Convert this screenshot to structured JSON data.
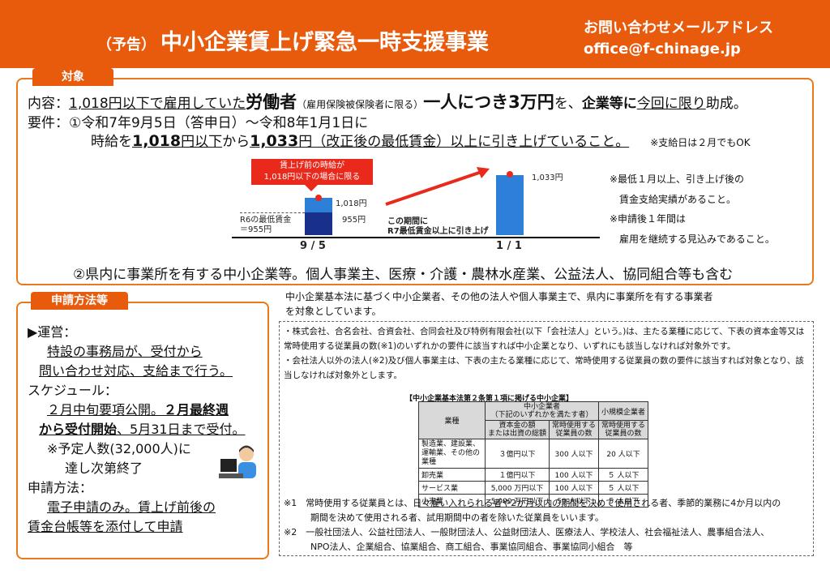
{
  "header": {
    "title_prefix": "（予告）",
    "title": "中小企業賃上げ緊急一時支援事業",
    "contact_label": "お問い合わせメールアドレス",
    "contact_email": "office@f-chinage.jp",
    "bg_color": "#e85a0c"
  },
  "target": {
    "tab": "対象",
    "content": {
      "p1": "内容：",
      "p2": "1,018円以下で雇用していた",
      "p3": "労働者",
      "p4": "（雇用保険被保険者に限る）",
      "p5": "一人につき3万円",
      "p6": "を、",
      "p7": "企業等に",
      "p8": "今回に限り",
      "p9": "助成。"
    },
    "req1": {
      "p1": "要件：①令和7年9月5日（答申日）～令和8年1月1日に"
    },
    "req2": {
      "p1": "時給を",
      "p2": "1,018",
      "p3": "円以下",
      "p4": "から",
      "p5": "1,033",
      "p6": "円（改正後の最低賃金）以上に引き上げていること。",
      "p7": "※支給日は２月でもOK"
    },
    "chart": {
      "callout": "賃上げ前の時給が\n1,018円以下の場合に限る",
      "left_top_label": "1,018円",
      "left_low_label": "955円",
      "r6_label": "R6の最低賃金\n＝955円",
      "arrow_label": "この期間に\nR7最低賃金以上に引き上げ",
      "right_label": "1,033円",
      "x_left": "9 / 5",
      "x_right": "1 / 1"
    },
    "notes": [
      "※最低１月以上、引き上げ後の",
      "　賃金支給実績があること。",
      "※申請後１年間は",
      "　雇用を継続する見込みであること。"
    ],
    "req3": "②県内に事業所を有する中小企業等。個人事業主、医療・介護・農林水産業、公益法人、協同組合等も含む"
  },
  "apply": {
    "tab": "申請方法等",
    "op_title": "▶運営：",
    "op1": "特設の事務局が、受付から",
    "op2": "問い合わせ対応、支給まで行う。",
    "sched_title": "スケジュール：",
    "s1": "２月中旬要項公開。",
    "s2": "２月最終週",
    "s3": "から受付開始",
    "s4": "、5月31日まで受付。",
    "s5": "※予定人数(32,000人)に",
    "s6": "達し次第終了",
    "method_title": "申請方法：",
    "m1": "電子申請のみ",
    "m2": "。賃上げ前後の",
    "m3": "賃金台帳等を添付して申請"
  },
  "definition": {
    "intro1": "中小企業基本法に基づく中小企業者、その他の法人や個人事業主で、県内に事業所を有する事業者",
    "intro2": "を対象としています。",
    "b1": "・株式会社、合名会社、合資会社、合同会社及び特例有限会社(以下「会社法人」という。)は、主たる業種に応じて、下表の資本金等又は常時使用する従業員の数(※1)のいずれかの要件に該当すれば中小企業となり、いずれにも該当しなければ対象外です。",
    "b2": "・会社法人以外の法人(※2)及び個人事業主は、下表の主たる業種に応じて、常時使用する従業員の数の要件に該当すれば対象となり、該当しなければ対象外とします。",
    "table_title": "【中小企業基本法第２条第１項に掲げる中小企業】",
    "table": {
      "h_industry": "業種",
      "h_sme": "中小企業者\n（下記のいずれかを満たす者）",
      "h_small": "小規模企業者",
      "h_capital": "資本金の額\nまたは出資の総額",
      "h_employees": "常時使用する\n従業員の数",
      "h_small_emp": "常時使用する\n従業員の数",
      "rows": [
        [
          "製造業、建設業、運輸業、その他の業種",
          "３億円以下",
          "300 人以下",
          "20 人以下"
        ],
        [
          "卸売業",
          "１億円以下",
          "100 人以下",
          "５ 人以下"
        ],
        [
          "サービス業",
          "5,000 万円以下",
          "100 人以下",
          "５ 人以下"
        ],
        [
          "小売業",
          "5,000 万円以下",
          "50 人以下",
          "５ 人以下"
        ]
      ]
    },
    "fn1a": "※1　常時使用する従業員とは、日々雇い入れられる者や2か月以内の期間を決めて使用される者、季節的業務に4か月以内の",
    "fn1b": "　　　期間を決めて使用される者、試用期間中の者を除いた従業員をいいます。",
    "fn2a": "※2　一般社団法人、公益社団法人、一般財団法人、公益財団法人、医療法人、学校法人、社会福祉法人、農事組合法人、",
    "fn2b": "　　　NPO法人、企業組合、協業組合、商工組合、事業協同組合、事業協同小組合　等"
  },
  "colors": {
    "accent": "#e85a0c",
    "bar_light": "#2d7fd8",
    "bar_dark": "#18308a",
    "red": "#e8291c"
  }
}
